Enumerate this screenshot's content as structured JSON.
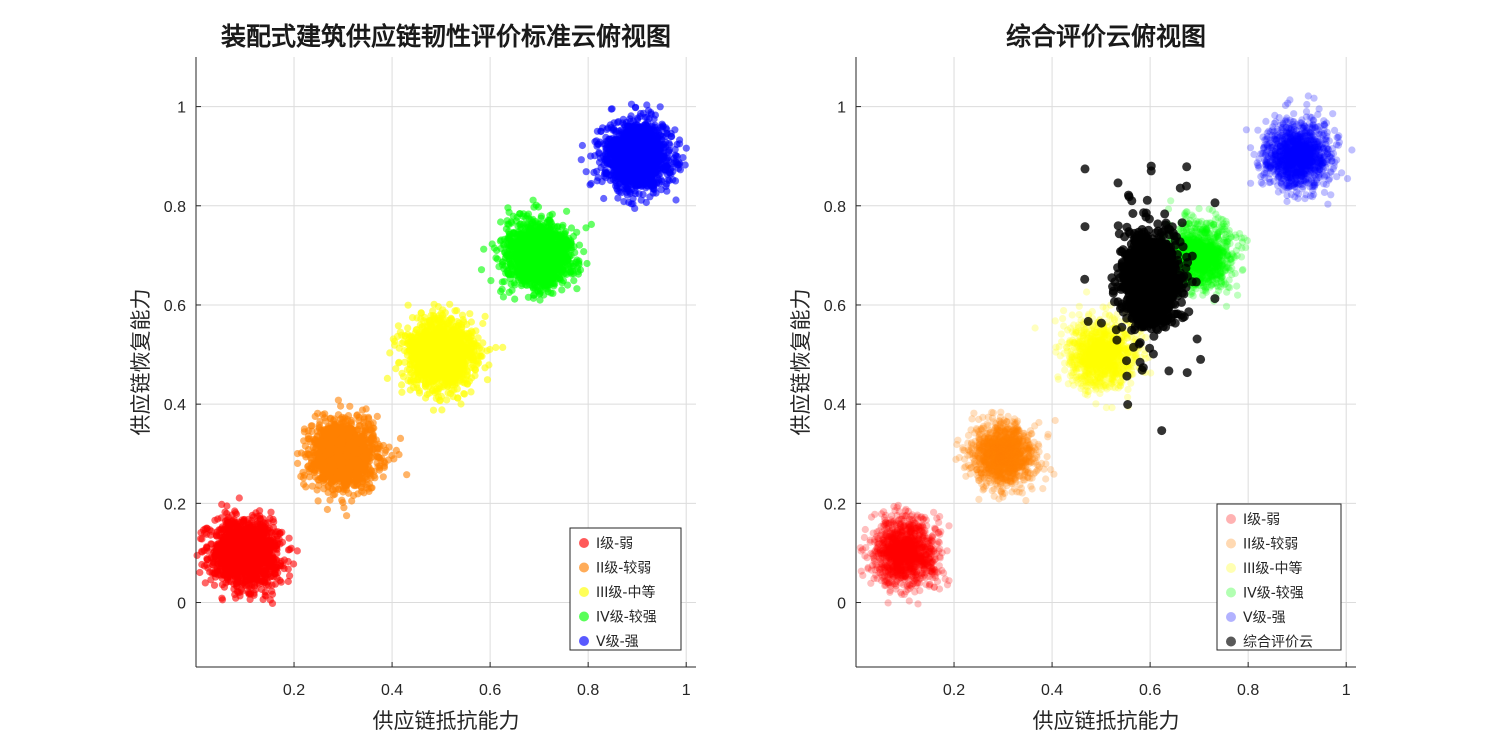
{
  "colors": {
    "level1": "#ff0000",
    "level2": "#ff8000",
    "level3": "#ffff00",
    "level4": "#00ff00",
    "level5": "#0000ff",
    "composite": "#000000"
  },
  "chart_data": [
    {
      "type": "scatter",
      "title": "装配式建筑供应链韧性评价标准云俯视图",
      "xlabel": "供应链抵抗能力",
      "ylabel": "供应链恢复能力",
      "xlim": [
        0,
        1.02
      ],
      "ylim": [
        -0.13,
        1.1
      ],
      "xticks": [
        "0.2",
        "0.4",
        "0.6",
        "0.8",
        "1"
      ],
      "yticks": [
        "0",
        "0.2",
        "0.4",
        "0.6",
        "0.8",
        "1"
      ],
      "grid": true,
      "legend_position": "bottom-right",
      "series": [
        {
          "name": "I级-弱",
          "color_key": "level1",
          "center": [
            0.1,
            0.1
          ],
          "spread": 0.033,
          "points": 1500,
          "opacity": 0.6
        },
        {
          "name": "II级-较弱",
          "color_key": "level2",
          "center": [
            0.3,
            0.3
          ],
          "spread": 0.033,
          "points": 1500,
          "opacity": 0.6
        },
        {
          "name": "III级-中等",
          "color_key": "level3",
          "center": [
            0.5,
            0.5
          ],
          "spread": 0.033,
          "points": 1500,
          "opacity": 0.6
        },
        {
          "name": "IV级-较强",
          "color_key": "level4",
          "center": [
            0.7,
            0.7
          ],
          "spread": 0.033,
          "points": 1500,
          "opacity": 0.6
        },
        {
          "name": "V级-强",
          "color_key": "level5",
          "center": [
            0.9,
            0.9
          ],
          "spread": 0.033,
          "points": 1500,
          "opacity": 0.6
        }
      ]
    },
    {
      "type": "scatter",
      "title": "综合评价云俯视图",
      "xlabel": "供应链抵抗能力",
      "ylabel": "供应链恢复能力",
      "xlim": [
        0,
        1.02
      ],
      "ylim": [
        -0.13,
        1.1
      ],
      "xticks": [
        "0.2",
        "0.4",
        "0.6",
        "0.8",
        "1"
      ],
      "yticks": [
        "0",
        "0.2",
        "0.4",
        "0.6",
        "0.8",
        "1"
      ],
      "grid": true,
      "legend_position": "bottom-right",
      "series": [
        {
          "name": "I级-弱",
          "color_key": "level1",
          "center": [
            0.1,
            0.1
          ],
          "spread": 0.033,
          "points": 1200,
          "opacity": 0.25
        },
        {
          "name": "II级-较弱",
          "color_key": "level2",
          "center": [
            0.3,
            0.3
          ],
          "spread": 0.033,
          "points": 1200,
          "opacity": 0.25
        },
        {
          "name": "III级-中等",
          "color_key": "level3",
          "center": [
            0.5,
            0.5
          ],
          "spread": 0.033,
          "points": 1200,
          "opacity": 0.25
        },
        {
          "name": "IV级-较强",
          "color_key": "level4",
          "center": [
            0.7,
            0.7
          ],
          "spread": 0.033,
          "points": 1200,
          "opacity": 0.25
        },
        {
          "name": "V级-强",
          "color_key": "level5",
          "center": [
            0.9,
            0.9
          ],
          "spread": 0.033,
          "points": 1200,
          "opacity": 0.25
        },
        {
          "name": "综合评价云",
          "color_key": "composite",
          "center": [
            0.6,
            0.65
          ],
          "spread": 0.025,
          "spread_y": 0.04,
          "points": 1500,
          "opacity": 0.8,
          "heavy_tailed": true
        }
      ]
    }
  ]
}
